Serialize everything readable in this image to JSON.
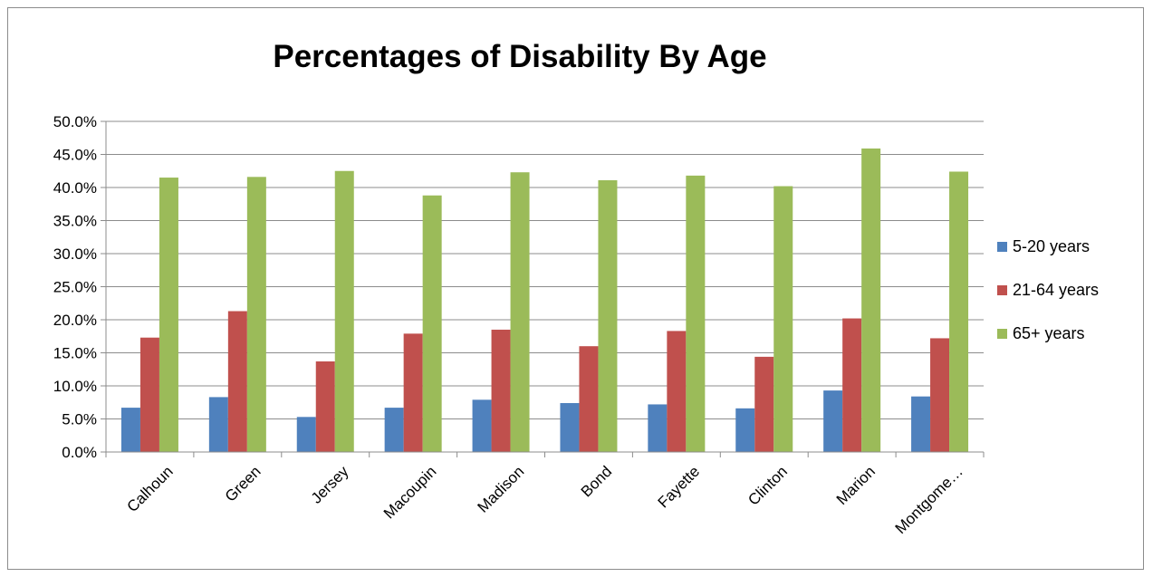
{
  "chart_data": {
    "type": "bar",
    "title": "Percentages of Disability By Age",
    "categories": [
      "Calhoun",
      "Green",
      "Jersey",
      "Macoupin",
      "Madison",
      "Bond",
      "Fayette",
      "Clinton",
      "Marion",
      "Montgome…"
    ],
    "series": [
      {
        "name": "5-20 years",
        "color": "#4f81bd",
        "values": [
          6.7,
          8.3,
          5.3,
          6.7,
          7.9,
          7.4,
          7.2,
          6.6,
          9.3,
          8.4
        ]
      },
      {
        "name": "21-64 years",
        "color": "#c0504d",
        "values": [
          17.3,
          21.3,
          13.7,
          17.9,
          18.5,
          16.0,
          18.3,
          14.4,
          20.2,
          17.2
        ]
      },
      {
        "name": "65+ years",
        "color": "#9bbb59",
        "values": [
          41.5,
          41.6,
          42.5,
          38.8,
          42.3,
          41.1,
          41.8,
          40.2,
          45.9,
          42.4
        ]
      }
    ],
    "ylim": [
      0,
      50
    ],
    "yticks": [
      0,
      5,
      10,
      15,
      20,
      25,
      30,
      35,
      40,
      45,
      50
    ],
    "ytick_labels": [
      "0.0%",
      "5.0%",
      "10.0%",
      "15.0%",
      "20.0%",
      "25.0%",
      "30.0%",
      "35.0%",
      "40.0%",
      "45.0%",
      "50.0%"
    ],
    "grid": true,
    "legend_position": "right",
    "xlabel": "",
    "ylabel": ""
  }
}
